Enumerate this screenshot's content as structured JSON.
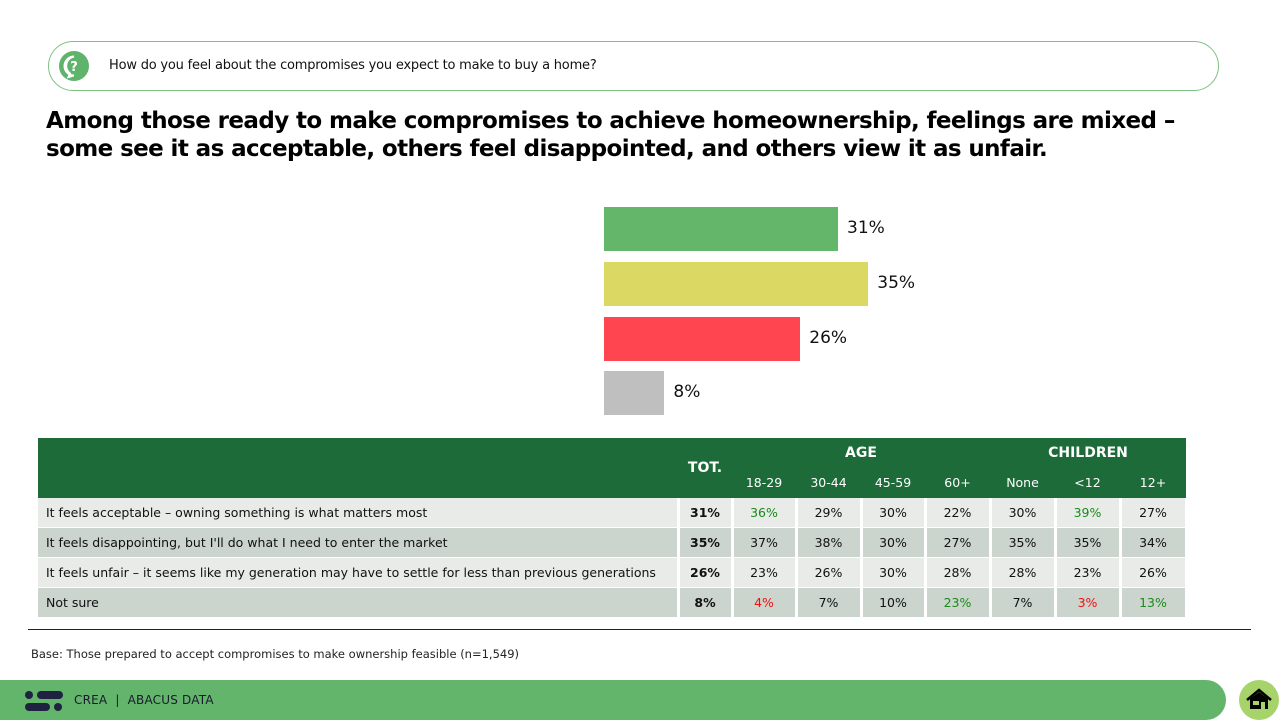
{
  "question": {
    "icon": "question-bubble-icon",
    "text": "How do you feel about the compromises you expect to make to buy a home?"
  },
  "headline": "Among those ready to make compromises to achieve homeownership, feelings are mixed – some see it as acceptable, others feel disappointed, and others view it as unfair.",
  "chart_data": {
    "type": "bar",
    "orientation": "horizontal",
    "title": "",
    "xlabel": "",
    "ylabel": "",
    "xlim": [
      0,
      100
    ],
    "grid": false,
    "categories": [
      "It feels acceptable – owning something is what matters most",
      "It feels disappointing, but I’ll do what I need to enter the market",
      "It feels unfair – it seems like my generation may have to settle for less than previous generations",
      "Not sure"
    ],
    "category_lines": [
      [
        "It feels acceptable – owning something is what matters most"
      ],
      [
        "It feels disappointing, but I’ll do what I need to enter the market"
      ],
      [
        "It feels unfair – it seems like my generation may have to settle for",
        "less than previous generations"
      ],
      [
        "Not sure"
      ]
    ],
    "values": [
      31,
      35,
      26,
      8
    ],
    "value_labels": [
      "31%",
      "35%",
      "26%",
      "8%"
    ],
    "colors": [
      "#64b66b",
      "#dbd964",
      "#ff4650",
      "#bfbfbf"
    ]
  },
  "table": {
    "total_header": "TOT.",
    "groups": [
      {
        "label": "AGE",
        "columns": [
          "18-29",
          "30-44",
          "45-59",
          "60+"
        ]
      },
      {
        "label": "CHILDREN",
        "columns": [
          "None",
          "<12",
          "12+"
        ]
      }
    ],
    "rows": [
      {
        "label": "It feels acceptable – owning something is what matters most",
        "total": "31%",
        "cells": [
          {
            "v": "36%",
            "s": "pos"
          },
          {
            "v": "29%",
            "s": ""
          },
          {
            "v": "30%",
            "s": ""
          },
          {
            "v": "22%",
            "s": ""
          },
          {
            "v": "30%",
            "s": ""
          },
          {
            "v": "39%",
            "s": "pos"
          },
          {
            "v": "27%",
            "s": ""
          }
        ]
      },
      {
        "label": "It feels disappointing, but I'll do what I need to enter the market",
        "total": "35%",
        "cells": [
          {
            "v": "37%",
            "s": ""
          },
          {
            "v": "38%",
            "s": ""
          },
          {
            "v": "30%",
            "s": ""
          },
          {
            "v": "27%",
            "s": ""
          },
          {
            "v": "35%",
            "s": ""
          },
          {
            "v": "35%",
            "s": ""
          },
          {
            "v": "34%",
            "s": ""
          }
        ]
      },
      {
        "label": "It feels unfair – it seems like my generation may have to settle for less than previous generations",
        "total": "26%",
        "cells": [
          {
            "v": "23%",
            "s": ""
          },
          {
            "v": "26%",
            "s": ""
          },
          {
            "v": "30%",
            "s": ""
          },
          {
            "v": "28%",
            "s": ""
          },
          {
            "v": "28%",
            "s": ""
          },
          {
            "v": "23%",
            "s": ""
          },
          {
            "v": "26%",
            "s": ""
          }
        ]
      },
      {
        "label": "Not sure",
        "total": "8%",
        "cells": [
          {
            "v": "4%",
            "s": "neg"
          },
          {
            "v": "7%",
            "s": ""
          },
          {
            "v": "10%",
            "s": ""
          },
          {
            "v": "23%",
            "s": "pos"
          },
          {
            "v": "7%",
            "s": ""
          },
          {
            "v": "3%",
            "s": "neg"
          },
          {
            "v": "13%",
            "s": "pos"
          }
        ]
      }
    ],
    "colors": {
      "header": "#1c6b39",
      "positive": "#1a8a1a",
      "negative": "#ee1111"
    }
  },
  "base_note": "Base: Those prepared to accept compromises to make ownership feasible (n=1,549)",
  "footer": {
    "logo": "abacus-logo-icon",
    "text": "CREA  |  ABACUS DATA",
    "home_icon": "home-icon"
  }
}
